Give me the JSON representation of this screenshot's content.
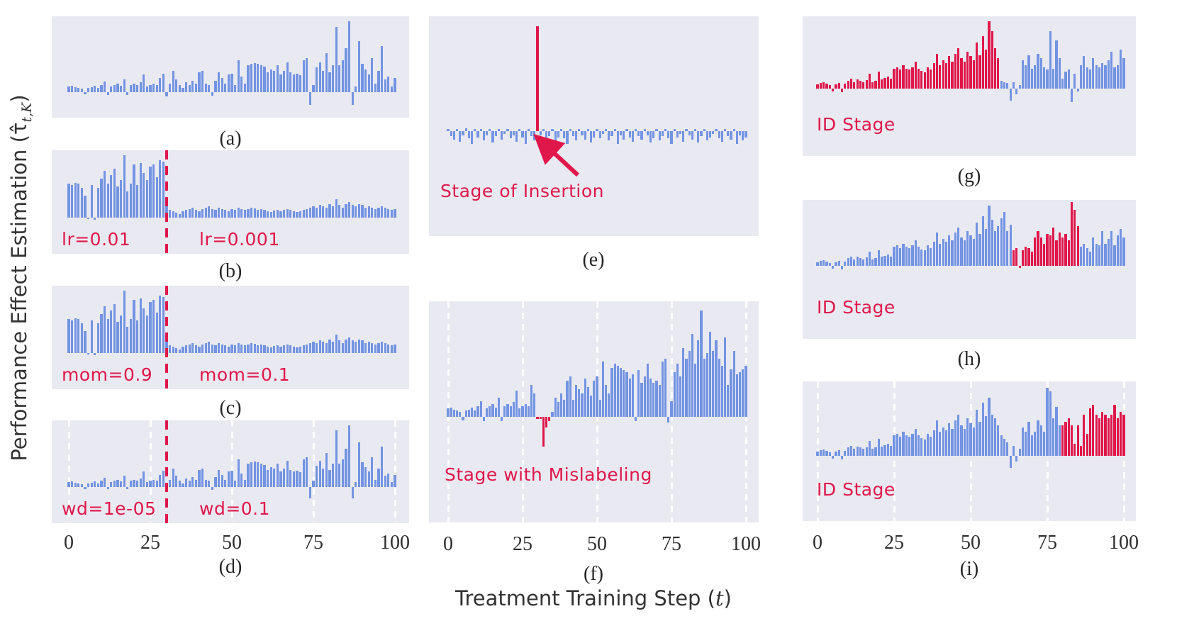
{
  "figure": {
    "ylabel_pre": "Performance Effect Estimation (",
    "ylabel_tau": "τ̂",
    "ylabel_sub": "t,K",
    "ylabel_post": ")",
    "xlabel_pre": "Treatment Training Step (",
    "xlabel_t": "t",
    "xlabel_post": ")",
    "colors": {
      "bar_blue": "#7394e2",
      "bar_red": "#e0174a",
      "annotation_red": "#e0174a",
      "panel_background": "#e9e9f1",
      "gridline": "#ffffff",
      "text_dark": "#2e2e2e"
    }
  },
  "chart_data": {
    "type": "bar",
    "x_range": [
      0,
      100
    ],
    "x_ticks": [
      "0",
      "25",
      "50",
      "75",
      "100"
    ],
    "xlabel": "Treatment Training Step (t)",
    "ylabel": "Performance Effect Estimation (τ̂_{t,K})",
    "grid": "white dashed vertical lines on bottom-row panels only (d, f, i)",
    "legend_position": "none",
    "series": {
      "A": [
        0.08,
        0.09,
        0.07,
        0.06,
        0.05,
        -0.03,
        0.06,
        0.07,
        0.09,
        0.06,
        0.1,
        0.15,
        -0.04,
        0.08,
        0.1,
        0.12,
        0.09,
        0.18,
        -0.04,
        0.1,
        0.12,
        0.1,
        0.14,
        0.25,
        0.08,
        0.1,
        0.12,
        0.1,
        0.2,
        0.26,
        -0.06,
        0.12,
        0.3,
        0.18,
        0.1,
        0.06,
        0.14,
        0.1,
        0.16,
        0.12,
        0.28,
        0.3,
        0.12,
        0.1,
        -0.05,
        0.16,
        0.28,
        0.2,
        0.12,
        0.25,
        0.26,
        0.1,
        0.45,
        0.22,
        0.12,
        0.38,
        0.4,
        0.41,
        0.4,
        0.38,
        0.36,
        0.28,
        0.32,
        0.3,
        0.38,
        0.25,
        0.3,
        0.42,
        0.28,
        0.25,
        0.26,
        0.24,
        0.45,
        0.48,
        -0.18,
        0.1,
        0.35,
        0.42,
        0.3,
        0.55,
        0.28,
        0.38,
        0.92,
        0.38,
        0.45,
        0.62,
        1.0,
        -0.18,
        0.08,
        0.72,
        0.4,
        0.32,
        0.25,
        0.48,
        0.12,
        0.3,
        0.65,
        0.18,
        0.22,
        0.08,
        0.2
      ],
      "B": [
        0.55,
        0.52,
        0.56,
        0.54,
        0.48,
        0.35,
        -0.02,
        0.52,
        -0.03,
        0.48,
        0.62,
        0.75,
        0.55,
        0.68,
        0.78,
        0.5,
        0.6,
        1.0,
        0.42,
        0.55,
        0.85,
        0.52,
        0.88,
        0.72,
        0.6,
        0.82,
        0.85,
        0.65,
        0.92,
        0.9,
        0.2,
        0.12,
        0.1,
        0.08,
        0.06,
        0.1,
        0.12,
        0.14,
        0.16,
        0.12,
        0.1,
        0.14,
        0.16,
        0.18,
        0.14,
        0.12,
        0.16,
        0.14,
        0.12,
        0.1,
        0.14,
        0.12,
        0.16,
        0.14,
        0.12,
        0.14,
        0.16,
        0.15,
        0.13,
        0.14,
        0.12,
        0.1,
        0.09,
        0.11,
        0.12,
        0.1,
        0.12,
        0.14,
        0.12,
        0.1,
        0.09,
        0.1,
        0.12,
        0.14,
        0.16,
        0.18,
        0.16,
        0.2,
        0.18,
        0.16,
        0.22,
        0.18,
        0.3,
        0.2,
        0.16,
        0.22,
        0.25,
        0.2,
        0.18,
        0.22,
        0.2,
        0.16,
        0.18,
        0.16,
        0.14,
        0.16,
        0.18,
        0.16,
        0.14,
        0.12,
        0.14
      ],
      "E": [
        0.02,
        -0.05,
        -0.08,
        0.02,
        -0.1,
        -0.04,
        0.03,
        -0.07,
        -0.12,
        0.02,
        -0.06,
        0.02,
        -0.09,
        -0.04,
        0.02,
        -0.11,
        -0.05,
        0.02,
        -0.08,
        -0.03,
        0.02,
        -0.07,
        -0.04,
        -0.1,
        0.02,
        -0.06,
        -0.12,
        0.02,
        -0.05,
        -0.09,
        1.0,
        -0.04,
        0.02,
        -0.08,
        -0.05,
        0.02,
        -0.1,
        -0.06,
        0.02,
        -0.07,
        -0.12,
        0.02,
        -0.05,
        -0.09,
        0.02,
        -0.04,
        -0.08,
        0.02,
        -0.11,
        -0.06,
        0.02,
        -0.07,
        -0.03,
        0.02,
        -0.09,
        -0.05,
        0.02,
        -0.12,
        -0.04,
        -0.08,
        0.02,
        -0.06,
        -0.1,
        0.02,
        -0.05,
        -0.08,
        0.02,
        -0.04,
        -0.11,
        -0.07,
        0.02,
        -0.09,
        -0.05,
        0.02,
        -0.07,
        -0.12,
        0.02,
        -0.06,
        -0.03,
        -0.1,
        0.02,
        -0.04,
        -0.08,
        0.02,
        -0.11,
        -0.05,
        0.02,
        -0.09,
        -0.06,
        -0.03,
        0.02,
        -0.07,
        -0.1,
        0.02,
        -0.05,
        -0.08,
        0.02,
        -0.12,
        -0.04,
        -0.09,
        -0.06
      ],
      "F": [
        0.08,
        0.09,
        0.07,
        0.06,
        0.05,
        -0.03,
        0.06,
        0.07,
        0.09,
        0.06,
        0.1,
        0.15,
        -0.04,
        0.08,
        0.1,
        0.12,
        0.09,
        0.18,
        -0.04,
        0.1,
        0.12,
        0.1,
        0.14,
        0.25,
        0.08,
        0.1,
        0.12,
        0.1,
        0.3,
        0.22,
        -0.02,
        -0.02,
        -0.28,
        -0.1,
        -0.04,
        0.05,
        0.18,
        0.14,
        0.22,
        0.16,
        0.34,
        0.38,
        0.16,
        0.3,
        0.26,
        0.22,
        0.36,
        0.28,
        0.2,
        0.34,
        0.38,
        0.16,
        0.52,
        0.3,
        0.22,
        0.46,
        0.5,
        0.48,
        0.46,
        0.44,
        0.42,
        0.36,
        0.4,
        -0.04,
        0.44,
        0.32,
        0.38,
        0.5,
        0.36,
        0.32,
        0.34,
        0.3,
        0.52,
        0.55,
        -0.05,
        0.15,
        0.42,
        0.5,
        0.38,
        0.65,
        0.55,
        0.62,
        0.78,
        0.5,
        0.72,
        1.0,
        0.55,
        0.6,
        0.8,
        0.62,
        0.72,
        0.55,
        0.48,
        0.75,
        0.3,
        0.45,
        0.62,
        0.4,
        0.42,
        0.45,
        0.48
      ],
      "G": [
        0.06,
        0.08,
        0.09,
        0.07,
        0.05,
        -0.04,
        0.06,
        0.08,
        -0.05,
        0.07,
        0.12,
        0.15,
        0.1,
        0.14,
        0.12,
        0.1,
        0.13,
        0.22,
        0.1,
        0.12,
        0.25,
        0.14,
        0.16,
        0.18,
        0.15,
        0.3,
        0.32,
        0.28,
        0.35,
        0.3,
        0.28,
        0.32,
        0.4,
        0.3,
        0.26,
        0.24,
        0.32,
        0.28,
        0.38,
        0.52,
        0.35,
        0.42,
        0.38,
        0.48,
        0.4,
        0.52,
        0.6,
        0.45,
        0.4,
        0.55,
        0.48,
        0.42,
        0.68,
        0.5,
        0.78,
        0.58,
        1.0,
        0.85,
        0.6,
        0.45,
        0.12,
        0.1,
        0.08,
        -0.18,
        0.1,
        -0.08,
        0.05,
        0.42,
        0.35,
        0.5,
        0.3,
        0.35,
        0.52,
        0.45,
        0.32,
        0.28,
        0.85,
        0.3,
        0.72,
        0.45,
        0.15,
        0.25,
        0.28,
        -0.2,
        0.22,
        -0.04,
        0.35,
        0.48,
        0.32,
        0.28,
        0.45,
        0.35,
        0.32,
        0.38,
        0.35,
        0.42,
        0.55,
        0.32,
        0.35,
        0.58,
        0.45
      ],
      "H": [
        0.06,
        0.08,
        0.09,
        0.07,
        0.05,
        -0.04,
        0.06,
        0.08,
        -0.05,
        0.07,
        0.12,
        0.15,
        0.1,
        0.14,
        0.12,
        0.1,
        0.13,
        0.22,
        0.1,
        0.12,
        0.25,
        0.14,
        0.16,
        0.18,
        0.15,
        0.3,
        0.32,
        0.28,
        0.35,
        0.3,
        0.28,
        0.32,
        0.4,
        0.3,
        0.26,
        0.24,
        0.32,
        0.28,
        0.38,
        0.52,
        0.35,
        0.42,
        0.38,
        0.48,
        0.4,
        0.52,
        0.6,
        0.45,
        0.4,
        0.55,
        0.48,
        0.42,
        0.68,
        0.5,
        0.78,
        0.58,
        0.95,
        0.72,
        0.55,
        0.62,
        0.75,
        0.85,
        0.55,
        0.65,
        0.25,
        0.28,
        -0.03,
        0.25,
        0.3,
        0.28,
        0.22,
        0.45,
        0.55,
        0.45,
        0.35,
        0.5,
        0.48,
        0.6,
        0.4,
        0.52,
        0.45,
        0.5,
        0.4,
        1.0,
        0.88,
        0.62,
        0.3,
        0.35,
        0.28,
        0.22,
        0.45,
        0.35,
        0.32,
        0.55,
        0.35,
        0.42,
        0.55,
        0.32,
        0.48,
        0.58,
        0.45
      ],
      "I": [
        0.06,
        0.08,
        0.09,
        0.07,
        0.05,
        -0.04,
        0.06,
        0.08,
        -0.05,
        0.07,
        0.12,
        0.15,
        0.1,
        0.14,
        0.12,
        0.1,
        0.13,
        0.22,
        0.1,
        0.12,
        0.25,
        0.14,
        0.16,
        0.18,
        0.15,
        0.3,
        0.32,
        0.28,
        0.35,
        0.3,
        0.28,
        0.32,
        0.4,
        0.3,
        0.26,
        0.24,
        0.32,
        0.28,
        0.38,
        0.52,
        0.35,
        0.42,
        0.38,
        0.48,
        0.4,
        0.52,
        0.6,
        0.45,
        0.4,
        0.55,
        0.48,
        0.42,
        0.68,
        0.5,
        0.78,
        0.58,
        0.85,
        0.6,
        0.55,
        0.45,
        0.3,
        0.25,
        0.2,
        -0.18,
        0.15,
        -0.08,
        0.1,
        0.42,
        0.35,
        0.5,
        0.3,
        0.35,
        0.52,
        0.45,
        0.35,
        1.0,
        0.95,
        0.55,
        0.72,
        0.45,
        0.45,
        0.5,
        0.55,
        0.45,
        0.18,
        0.45,
        0.15,
        0.6,
        0.32,
        0.7,
        0.75,
        0.6,
        0.55,
        0.65,
        0.6,
        0.55,
        0.6,
        0.75,
        0.55,
        0.65,
        0.6
      ]
    },
    "panels": [
      {
        "id": "a",
        "label": "(a)",
        "series": "A",
        "grid": false,
        "vline_t": null,
        "red_ranges": [],
        "annotations": []
      },
      {
        "id": "b",
        "label": "(b)",
        "series": "B",
        "grid": false,
        "vline_t": 30,
        "red_ranges": [],
        "annotations": [
          {
            "text": "lr=0.01",
            "pos": "left"
          },
          {
            "text": "lr=0.001",
            "pos": "right"
          }
        ]
      },
      {
        "id": "c",
        "label": "(c)",
        "series": "B",
        "grid": false,
        "vline_t": 30,
        "red_ranges": [],
        "annotations": [
          {
            "text": "mom=0.9",
            "pos": "left"
          },
          {
            "text": "mom=0.1",
            "pos": "right"
          }
        ]
      },
      {
        "id": "d",
        "label": "(d)",
        "series": "A",
        "grid": true,
        "vline_t": 30,
        "red_ranges": [],
        "annotations": [
          {
            "text": "wd=1e-05",
            "pos": "left"
          },
          {
            "text": "wd=0.1",
            "pos": "right"
          }
        ]
      },
      {
        "id": "e",
        "label": "(e)",
        "series": "E",
        "grid": false,
        "vline_t": null,
        "red_ranges": [
          [
            30,
            30
          ]
        ],
        "annotations": [
          {
            "text": "Stage of Insertion",
            "pos": "arrowlabel"
          }
        ]
      },
      {
        "id": "f",
        "label": "(f)",
        "series": "F",
        "grid": true,
        "vline_t": null,
        "red_ranges": [
          [
            30,
            34
          ]
        ],
        "annotations": [
          {
            "text": "Stage with Mislabeling",
            "pos": "midleft"
          }
        ]
      },
      {
        "id": "g",
        "label": "(g)",
        "series": "G",
        "grid": false,
        "vline_t": null,
        "red_ranges": [
          [
            0,
            59
          ]
        ],
        "annotations": [
          {
            "text": "ID Stage",
            "pos": "id"
          }
        ]
      },
      {
        "id": "h",
        "label": "(h)",
        "series": "H",
        "grid": false,
        "vline_t": null,
        "red_ranges": [
          [
            64,
            85
          ]
        ],
        "annotations": [
          {
            "text": "ID Stage",
            "pos": "id"
          }
        ]
      },
      {
        "id": "i",
        "label": "(i)",
        "series": "I",
        "grid": true,
        "vline_t": null,
        "red_ranges": [
          [
            80,
            100
          ]
        ],
        "annotations": [
          {
            "text": "ID Stage",
            "pos": "id"
          }
        ]
      }
    ]
  }
}
